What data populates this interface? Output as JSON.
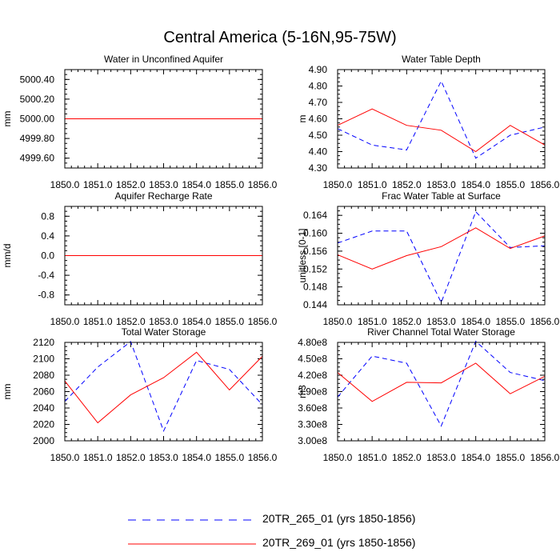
{
  "title": "Central America (5-16N,95-75W)",
  "colors": {
    "series_a": "#0000ff",
    "series_b": "#ff0000",
    "axis": "#000000"
  },
  "legend": [
    {
      "label": "20TR_265_01 (yrs 1850-1856)",
      "style": "dashed",
      "color": "#0000ff"
    },
    {
      "label": "20TR_269_01 (yrs 1850-1856)",
      "style": "solid",
      "color": "#ff0000"
    }
  ],
  "chart_data": [
    {
      "type": "line",
      "title": "Water in Unconfined Aquifer",
      "ylabel": "mm",
      "x": [
        1850,
        1851,
        1852,
        1853,
        1854,
        1855,
        1856
      ],
      "xticks": [
        "1850.0",
        "1851.0",
        "1852.0",
        "1853.0",
        "1854.0",
        "1855.0",
        "1856.0"
      ],
      "ylim": [
        4999.5,
        5000.5
      ],
      "yticks": [
        4999.6,
        4999.8,
        5000.0,
        5000.2,
        5000.4
      ],
      "yticklabels": [
        "4999.60",
        "4999.80",
        "5000.00",
        "5000.20",
        "5000.40"
      ],
      "series": [
        {
          "name": "20TR_265_01 (yrs 1850-1856)",
          "values": [
            5000,
            5000,
            5000,
            5000,
            5000,
            5000,
            5000
          ]
        },
        {
          "name": "20TR_269_01 (yrs 1850-1856)",
          "values": [
            5000,
            5000,
            5000,
            5000,
            5000,
            5000,
            5000
          ]
        }
      ]
    },
    {
      "type": "line",
      "title": "Water Table Depth",
      "ylabel": "m",
      "x": [
        1850,
        1851,
        1852,
        1853,
        1854,
        1855,
        1856
      ],
      "xticks": [
        "1850.0",
        "1851.0",
        "1852.0",
        "1853.0",
        "1854.0",
        "1855.0",
        "1856.0"
      ],
      "ylim": [
        4.3,
        4.9
      ],
      "yticks": [
        4.3,
        4.4,
        4.5,
        4.6,
        4.7,
        4.8,
        4.9
      ],
      "yticklabels": [
        "4.30",
        "4.40",
        "4.50",
        "4.60",
        "4.70",
        "4.80",
        "4.90"
      ],
      "series": [
        {
          "name": "20TR_265_01 (yrs 1850-1856)",
          "values": [
            4.54,
            4.44,
            4.41,
            4.83,
            4.36,
            4.5,
            4.55
          ]
        },
        {
          "name": "20TR_269_01 (yrs 1850-1856)",
          "values": [
            4.56,
            4.66,
            4.56,
            4.53,
            4.4,
            4.56,
            4.44
          ]
        }
      ]
    },
    {
      "type": "line",
      "title": "Aquifer Recharge Rate",
      "ylabel": "mm/d",
      "x": [
        1850,
        1851,
        1852,
        1853,
        1854,
        1855,
        1856
      ],
      "xticks": [
        "1850.0",
        "1851.0",
        "1852.0",
        "1853.0",
        "1854.0",
        "1855.0",
        "1856.0"
      ],
      "ylim": [
        -1.0,
        1.0
      ],
      "yticks": [
        -0.8,
        -0.4,
        0.0,
        0.4,
        0.8
      ],
      "yticklabels": [
        "-0.8",
        "-0.4",
        "0.0",
        "0.4",
        "0.8"
      ],
      "series": [
        {
          "name": "20TR_265_01 (yrs 1850-1856)",
          "values": [
            0,
            0,
            0,
            0,
            0,
            0,
            0
          ]
        },
        {
          "name": "20TR_269_01 (yrs 1850-1856)",
          "values": [
            0,
            0,
            0,
            0,
            0,
            0,
            0
          ]
        }
      ]
    },
    {
      "type": "line",
      "title": "Frac Water Table at Surface",
      "ylabel": "unitless [0-1]",
      "x": [
        1850,
        1851,
        1852,
        1853,
        1854,
        1855,
        1856
      ],
      "xticks": [
        "1850.0",
        "1851.0",
        "1852.0",
        "1853.0",
        "1854.0",
        "1855.0",
        "1856.0"
      ],
      "ylim": [
        0.144,
        0.166
      ],
      "yticks": [
        0.144,
        0.148,
        0.152,
        0.156,
        0.16,
        0.164
      ],
      "yticklabels": [
        "0.144",
        "0.148",
        "0.152",
        "0.156",
        "0.160",
        "0.164"
      ],
      "series": [
        {
          "name": "20TR_265_01 (yrs 1850-1856)",
          "values": [
            0.1578,
            0.1605,
            0.1605,
            0.1445,
            0.1648,
            0.1568,
            0.1572
          ]
        },
        {
          "name": "20TR_269_01 (yrs 1850-1856)",
          "values": [
            0.1552,
            0.152,
            0.155,
            0.157,
            0.1612,
            0.1566,
            0.1594
          ]
        }
      ]
    },
    {
      "type": "line",
      "title": "Total Water Storage",
      "ylabel": "mm",
      "x": [
        1850,
        1851,
        1852,
        1853,
        1854,
        1855,
        1856
      ],
      "xticks": [
        "1850.0",
        "1851.0",
        "1852.0",
        "1853.0",
        "1854.0",
        "1855.0",
        "1856.0"
      ],
      "ylim": [
        2000,
        2120
      ],
      "yticks": [
        2000,
        2020,
        2040,
        2060,
        2080,
        2100,
        2120
      ],
      "yticklabels": [
        "2000",
        "2020",
        "2040",
        "2060",
        "2080",
        "2100",
        "2120"
      ],
      "series": [
        {
          "name": "20TR_265_01 (yrs 1850-1856)",
          "values": [
            2048,
            2090,
            2121,
            2012,
            2098,
            2087,
            2044
          ]
        },
        {
          "name": "20TR_269_01 (yrs 1850-1856)",
          "values": [
            2073,
            2022,
            2056,
            2077,
            2108,
            2062,
            2103
          ]
        }
      ]
    },
    {
      "type": "line",
      "title": "River Channel Total Water Storage",
      "ylabel": "m3",
      "x": [
        1850,
        1851,
        1852,
        1853,
        1854,
        1855,
        1856
      ],
      "xticks": [
        "1850.0",
        "1851.0",
        "1852.0",
        "1853.0",
        "1854.0",
        "1855.0",
        "1856.0"
      ],
      "ylim": [
        300000000,
        480000000
      ],
      "yticks": [
        300000000,
        330000000,
        360000000,
        390000000,
        420000000,
        450000000,
        480000000
      ],
      "yticklabels": [
        "3.00e8",
        "3.30e8",
        "3.60e8",
        "3.90e8",
        "4.20e8",
        "4.50e8",
        "4.80e8"
      ],
      "series": [
        {
          "name": "20TR_265_01 (yrs 1850-1856)",
          "values": [
            380000000,
            455000000,
            442000000,
            327000000,
            482000000,
            425000000,
            410000000
          ]
        },
        {
          "name": "20TR_269_01 (yrs 1850-1856)",
          "values": [
            425000000,
            372000000,
            407000000,
            406000000,
            442000000,
            386000000,
            418000000
          ]
        }
      ]
    }
  ]
}
